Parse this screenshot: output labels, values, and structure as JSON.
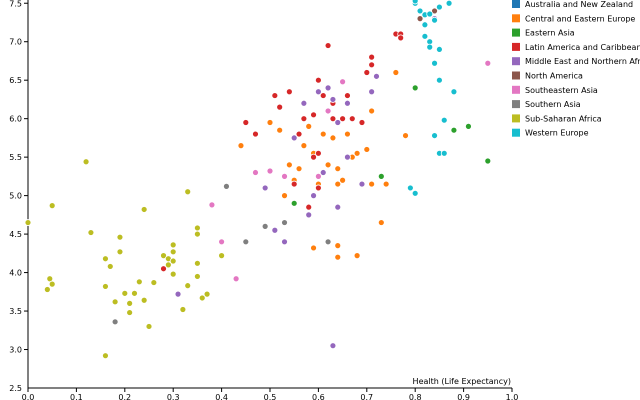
{
  "chart_data": {
    "type": "scatter",
    "xlabel": "Health (Life Expectancy)",
    "ylabel": "",
    "xlim": [
      0,
      1.0
    ],
    "ylim": [
      2.5,
      7.75
    ],
    "x_ticks": [
      "0.0",
      "0.1",
      "0.2",
      "0.3",
      "0.4",
      "0.5",
      "0.6",
      "0.7",
      "0.8",
      "0.9",
      "1.0"
    ],
    "y_ticks": [
      "3.0",
      "3.5",
      "4.0",
      "4.5",
      "5.0",
      "5.5",
      "6.0",
      "6.5",
      "7.0",
      "7.5"
    ],
    "legend_position": "top-right",
    "series": [
      {
        "name": "Australia and New Zealand",
        "color": "#1f77b4",
        "points": []
      },
      {
        "name": "Central and Eastern Europe",
        "color": "#ff7f0e",
        "points": [
          [
            0.44,
            5.65
          ],
          [
            0.5,
            5.95
          ],
          [
            0.52,
            5.85
          ],
          [
            0.53,
            5.0
          ],
          [
            0.54,
            5.4
          ],
          [
            0.55,
            5.2
          ],
          [
            0.56,
            5.35
          ],
          [
            0.58,
            5.9
          ],
          [
            0.59,
            4.32
          ],
          [
            0.59,
            5.55
          ],
          [
            0.6,
            5.15
          ],
          [
            0.61,
            5.8
          ],
          [
            0.62,
            5.4
          ],
          [
            0.63,
            5.75
          ],
          [
            0.64,
            5.15
          ],
          [
            0.64,
            4.35
          ],
          [
            0.64,
            4.2
          ],
          [
            0.65,
            5.2
          ],
          [
            0.66,
            5.8
          ],
          [
            0.67,
            5.5
          ],
          [
            0.68,
            5.55
          ],
          [
            0.68,
            4.22
          ],
          [
            0.7,
            5.6
          ],
          [
            0.71,
            6.1
          ],
          [
            0.71,
            5.15
          ],
          [
            0.73,
            4.65
          ],
          [
            0.74,
            5.15
          ],
          [
            0.76,
            6.6
          ],
          [
            0.78,
            5.78
          ],
          [
            0.64,
            5.35
          ],
          [
            0.57,
            5.65
          ]
        ]
      },
      {
        "name": "Eastern Asia",
        "color": "#2ca02c",
        "points": [
          [
            0.55,
            4.9
          ],
          [
            0.73,
            5.25
          ],
          [
            0.8,
            6.4
          ],
          [
            0.88,
            5.85
          ],
          [
            0.91,
            5.9
          ],
          [
            0.95,
            5.45
          ]
        ]
      },
      {
        "name": "Latin America and Caribbean",
        "color": "#d62728",
        "points": [
          [
            0.28,
            4.05
          ],
          [
            0.45,
            5.95
          ],
          [
            0.47,
            5.8
          ],
          [
            0.51,
            6.3
          ],
          [
            0.52,
            6.15
          ],
          [
            0.54,
            6.35
          ],
          [
            0.55,
            5.15
          ],
          [
            0.56,
            5.8
          ],
          [
            0.57,
            6.0
          ],
          [
            0.59,
            6.05
          ],
          [
            0.59,
            5.5
          ],
          [
            0.6,
            6.5
          ],
          [
            0.6,
            5.55
          ],
          [
            0.61,
            6.3
          ],
          [
            0.62,
            6.1
          ],
          [
            0.62,
            6.95
          ],
          [
            0.63,
            6.0
          ],
          [
            0.63,
            6.2
          ],
          [
            0.65,
            6.0
          ],
          [
            0.66,
            6.3
          ],
          [
            0.67,
            6.0
          ],
          [
            0.69,
            5.95
          ],
          [
            0.7,
            6.6
          ],
          [
            0.71,
            6.7
          ],
          [
            0.71,
            6.8
          ],
          [
            0.72,
            6.55
          ],
          [
            0.76,
            7.1
          ],
          [
            0.77,
            7.1
          ],
          [
            0.77,
            7.05
          ],
          [
            0.58,
            4.85
          ],
          [
            0.6,
            5.1
          ]
        ]
      },
      {
        "name": "Middle East and Northern Africa",
        "color": "#9467bd",
        "points": [
          [
            0.31,
            3.72
          ],
          [
            0.49,
            5.1
          ],
          [
            0.51,
            4.55
          ],
          [
            0.53,
            4.4
          ],
          [
            0.55,
            5.75
          ],
          [
            0.57,
            6.2
          ],
          [
            0.58,
            4.75
          ],
          [
            0.59,
            5.0
          ],
          [
            0.6,
            6.35
          ],
          [
            0.61,
            5.3
          ],
          [
            0.62,
            6.4
          ],
          [
            0.63,
            6.25
          ],
          [
            0.64,
            5.95
          ],
          [
            0.64,
            4.85
          ],
          [
            0.66,
            5.5
          ],
          [
            0.66,
            6.2
          ],
          [
            0.69,
            5.15
          ],
          [
            0.71,
            6.35
          ],
          [
            0.72,
            6.55
          ],
          [
            0.79,
            5.1
          ],
          [
            0.84,
            7.3
          ],
          [
            0.63,
            3.05
          ]
        ]
      },
      {
        "name": "North America",
        "color": "#8c564b",
        "points": [
          [
            0.81,
            7.3
          ],
          [
            0.84,
            7.4
          ]
        ]
      },
      {
        "name": "Southeastern Asia",
        "color": "#e377c2",
        "points": [
          [
            0.38,
            4.88
          ],
          [
            0.4,
            4.4
          ],
          [
            0.43,
            3.92
          ],
          [
            0.47,
            5.3
          ],
          [
            0.5,
            5.32
          ],
          [
            0.53,
            5.25
          ],
          [
            0.6,
            5.25
          ],
          [
            0.62,
            6.1
          ],
          [
            0.65,
            6.48
          ],
          [
            0.95,
            6.72
          ]
        ]
      },
      {
        "name": "Southern Asia",
        "color": "#7f7f7f",
        "points": [
          [
            0.18,
            3.36
          ],
          [
            0.41,
            5.12
          ],
          [
            0.45,
            4.4
          ],
          [
            0.49,
            4.6
          ],
          [
            0.53,
            4.65
          ],
          [
            0.62,
            4.4
          ]
        ]
      },
      {
        "name": "Sub-Saharan Africa",
        "color": "#bcbd22",
        "points": [
          [
            0.0,
            4.65
          ],
          [
            0.04,
            3.78
          ],
          [
            0.045,
            3.92
          ],
          [
            0.05,
            3.85
          ],
          [
            0.05,
            4.87
          ],
          [
            0.12,
            5.44
          ],
          [
            0.13,
            4.52
          ],
          [
            0.16,
            4.18
          ],
          [
            0.16,
            3.82
          ],
          [
            0.16,
            2.92
          ],
          [
            0.17,
            4.08
          ],
          [
            0.18,
            3.62
          ],
          [
            0.19,
            4.46
          ],
          [
            0.19,
            4.27
          ],
          [
            0.2,
            3.73
          ],
          [
            0.21,
            3.6
          ],
          [
            0.21,
            3.48
          ],
          [
            0.22,
            3.73
          ],
          [
            0.23,
            3.88
          ],
          [
            0.24,
            3.64
          ],
          [
            0.24,
            4.82
          ],
          [
            0.25,
            3.3
          ],
          [
            0.26,
            3.87
          ],
          [
            0.28,
            4.22
          ],
          [
            0.29,
            4.18
          ],
          [
            0.29,
            4.1
          ],
          [
            0.3,
            4.27
          ],
          [
            0.3,
            4.36
          ],
          [
            0.3,
            4.15
          ],
          [
            0.3,
            3.98
          ],
          [
            0.32,
            3.52
          ],
          [
            0.33,
            5.05
          ],
          [
            0.33,
            3.83
          ],
          [
            0.35,
            4.5
          ],
          [
            0.35,
            4.58
          ],
          [
            0.36,
            3.67
          ],
          [
            0.35,
            4.12
          ],
          [
            0.37,
            3.72
          ],
          [
            0.4,
            4.22
          ],
          [
            0.35,
            3.95
          ]
        ]
      },
      {
        "name": "Western Europe",
        "color": "#17becf",
        "points": [
          [
            0.79,
            5.1
          ],
          [
            0.8,
            5.03
          ],
          [
            0.8,
            7.5
          ],
          [
            0.8,
            7.53
          ],
          [
            0.81,
            7.4
          ],
          [
            0.82,
            7.22
          ],
          [
            0.82,
            7.07
          ],
          [
            0.82,
            7.35
          ],
          [
            0.83,
            7.0
          ],
          [
            0.83,
            6.93
          ],
          [
            0.83,
            7.36
          ],
          [
            0.84,
            6.72
          ],
          [
            0.84,
            7.28
          ],
          [
            0.85,
            6.5
          ],
          [
            0.85,
            6.9
          ],
          [
            0.85,
            7.45
          ],
          [
            0.84,
            5.78
          ],
          [
            0.85,
            5.55
          ],
          [
            0.86,
            5.98
          ],
          [
            0.87,
            7.5
          ],
          [
            0.87,
            7.5
          ],
          [
            0.88,
            6.35
          ],
          [
            0.86,
            5.55
          ]
        ]
      }
    ]
  }
}
